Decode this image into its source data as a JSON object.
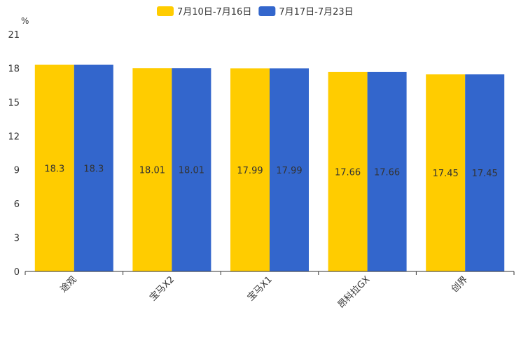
{
  "chart_data": {
    "type": "bar",
    "title": "",
    "ylabel": "%",
    "xlabel": "",
    "ylim": [
      0,
      21
    ],
    "yticks": [
      0,
      3,
      6,
      9,
      12,
      15,
      18,
      21
    ],
    "categories": [
      "途观",
      "宝马X2",
      "宝马X1",
      "昂科拉GX",
      "创界"
    ],
    "series": [
      {
        "name": "7月10日-7月16日",
        "color": "#FFCC00",
        "values": [
          18.3,
          18.01,
          17.99,
          17.66,
          17.45
        ]
      },
      {
        "name": "7月17日-7月23日",
        "color": "#3366CC",
        "values": [
          18.3,
          18.01,
          17.99,
          17.66,
          17.45
        ]
      }
    ],
    "legend_position": "top-center",
    "grid": false
  }
}
